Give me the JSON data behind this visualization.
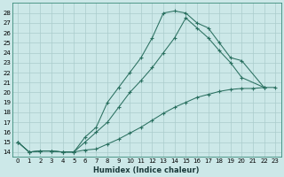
{
  "xlabel": "Humidex (Indice chaleur)",
  "bg_color": "#cce8e8",
  "line_color": "#2a7060",
  "grid_color": "#aacccc",
  "xlim": [
    -0.5,
    23.5
  ],
  "ylim": [
    13.5,
    29.0
  ],
  "yticks": [
    14,
    15,
    16,
    17,
    18,
    19,
    20,
    21,
    22,
    23,
    24,
    25,
    26,
    27,
    28
  ],
  "xticks": [
    0,
    1,
    2,
    3,
    4,
    5,
    6,
    7,
    8,
    9,
    10,
    11,
    12,
    13,
    14,
    15,
    16,
    17,
    18,
    19,
    20,
    21,
    22,
    23
  ],
  "line1_x": [
    0,
    1,
    2,
    3,
    4,
    5,
    6,
    7,
    8,
    9,
    10,
    11,
    12,
    13,
    14,
    15,
    16,
    17,
    18,
    19,
    20,
    22
  ],
  "line1_y": [
    15.0,
    14.0,
    14.1,
    14.1,
    14.0,
    14.0,
    15.5,
    16.5,
    19.0,
    20.5,
    22.0,
    23.5,
    25.5,
    28.0,
    28.2,
    28.0,
    27.0,
    26.5,
    25.0,
    23.5,
    23.2,
    20.5
  ],
  "line2_x": [
    0,
    1,
    2,
    3,
    4,
    5,
    6,
    7,
    8,
    9,
    10,
    11,
    12,
    13,
    14,
    15,
    16,
    17,
    18,
    19,
    20,
    22
  ],
  "line2_y": [
    15.0,
    14.0,
    14.1,
    14.1,
    14.0,
    14.0,
    15.0,
    16.0,
    17.0,
    18.5,
    20.0,
    21.2,
    22.5,
    24.0,
    25.5,
    27.5,
    26.5,
    25.5,
    24.2,
    23.0,
    21.5,
    20.5
  ],
  "line3_x": [
    0,
    1,
    2,
    3,
    4,
    5,
    6,
    7,
    8,
    9,
    10,
    11,
    12,
    13,
    14,
    15,
    16,
    17,
    18,
    19,
    20,
    21,
    22,
    23
  ],
  "line3_y": [
    15.0,
    14.0,
    14.1,
    14.1,
    14.0,
    14.0,
    14.2,
    14.3,
    14.8,
    15.3,
    15.9,
    16.5,
    17.2,
    17.9,
    18.5,
    19.0,
    19.5,
    19.8,
    20.1,
    20.3,
    20.4,
    20.4,
    20.5,
    20.5
  ]
}
